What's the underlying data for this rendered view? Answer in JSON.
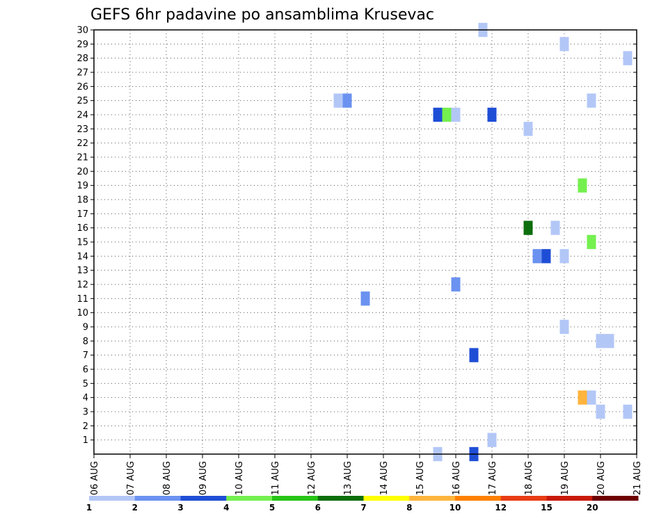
{
  "chart_data": {
    "type": "heatmap",
    "title": "GEFS 6hr padavine po ansamblima Krusevac",
    "x_tick_labels": [
      "06 AUG",
      "07 AUG",
      "08 AUG",
      "09 AUG",
      "10 AUG",
      "11 AUG",
      "12 AUG",
      "13 AUG",
      "14 AUG",
      "15 AUG",
      "16 AUG",
      "17 AUG",
      "18 AUG",
      "19 AUG",
      "20 AUG",
      "21 AUG"
    ],
    "x_range_days": [
      0,
      15
    ],
    "y_tick_labels": [
      "1",
      "2",
      "3",
      "4",
      "5",
      "6",
      "7",
      "8",
      "9",
      "10",
      "11",
      "12",
      "13",
      "14",
      "15",
      "16",
      "17",
      "18",
      "19",
      "20",
      "21",
      "22",
      "23",
      "24",
      "25",
      "26",
      "27",
      "28",
      "29",
      "30"
    ],
    "y_range": [
      0,
      30
    ],
    "grid": true,
    "legend_placement": "bottom",
    "levels": [
      {
        "label": "1",
        "color": "#b3c7f7"
      },
      {
        "label": "2",
        "color": "#6b92f0"
      },
      {
        "label": "3",
        "color": "#1f4ed6"
      },
      {
        "label": "4",
        "color": "#74f04f"
      },
      {
        "label": "5",
        "color": "#27c417"
      },
      {
        "label": "6",
        "color": "#0c6e0c"
      },
      {
        "label": "7",
        "color": "#ffff00"
      },
      {
        "label": "8",
        "color": "#ffb43c"
      },
      {
        "label": "10",
        "color": "#ff8000"
      },
      {
        "label": "12",
        "color": "#e83c14"
      },
      {
        "label": "15",
        "color": "#c81a0a"
      },
      {
        "label": "20",
        "color": "#6e0000"
      }
    ],
    "cells": [
      {
        "day": 10.75,
        "member": 30,
        "level": 1
      },
      {
        "day": 13.0,
        "member": 29,
        "level": 1
      },
      {
        "day": 14.75,
        "member": 28,
        "level": 1
      },
      {
        "day": 6.75,
        "member": 25,
        "level": 1
      },
      {
        "day": 7.0,
        "member": 25,
        "level": 2
      },
      {
        "day": 13.75,
        "member": 25,
        "level": 1
      },
      {
        "day": 9.5,
        "member": 24,
        "level": 3
      },
      {
        "day": 9.75,
        "member": 24,
        "level": 4
      },
      {
        "day": 10.0,
        "member": 24,
        "level": 1
      },
      {
        "day": 11.0,
        "member": 24,
        "level": 3
      },
      {
        "day": 12.0,
        "member": 23,
        "level": 1
      },
      {
        "day": 13.5,
        "member": 19,
        "level": 4
      },
      {
        "day": 12.0,
        "member": 16,
        "level": 6
      },
      {
        "day": 12.75,
        "member": 16,
        "level": 1
      },
      {
        "day": 13.75,
        "member": 15,
        "level": 4
      },
      {
        "day": 12.25,
        "member": 14,
        "level": 2
      },
      {
        "day": 12.5,
        "member": 14,
        "level": 3
      },
      {
        "day": 13.0,
        "member": 14,
        "level": 1
      },
      {
        "day": 10.0,
        "member": 12,
        "level": 2
      },
      {
        "day": 7.5,
        "member": 11,
        "level": 2
      },
      {
        "day": 13.0,
        "member": 9,
        "level": 1
      },
      {
        "day": 14.0,
        "member": 8,
        "level": 1
      },
      {
        "day": 14.25,
        "member": 8,
        "level": 1
      },
      {
        "day": 10.5,
        "member": 7,
        "level": 3
      },
      {
        "day": 13.5,
        "member": 4,
        "level": 8
      },
      {
        "day": 13.75,
        "member": 4,
        "level": 1
      },
      {
        "day": 14.0,
        "member": 3,
        "level": 1
      },
      {
        "day": 14.75,
        "member": 3,
        "level": 1
      },
      {
        "day": 11.0,
        "member": 1,
        "level": 1
      },
      {
        "day": 9.5,
        "member": 0,
        "level": 1
      },
      {
        "day": 10.5,
        "member": 0,
        "level": 3
      }
    ]
  }
}
